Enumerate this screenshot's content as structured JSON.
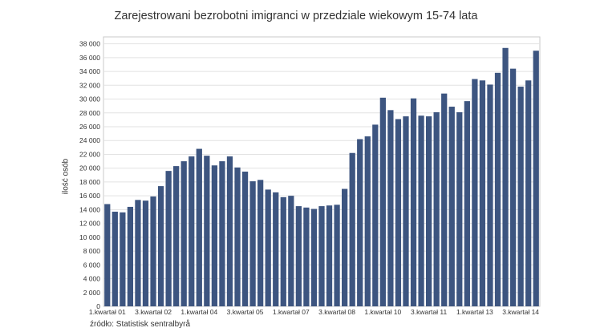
{
  "chart_data": {
    "type": "bar",
    "title": "Zarejestrowani bezrobotni imigranci w przedziale wiekowym 15-74 lata",
    "ylabel": "ilość osób",
    "xlabel": "",
    "ylim": [
      0,
      39000
    ],
    "yticks": [
      "0",
      "2 000",
      "4 000",
      "6 000",
      "8 000",
      "10 000",
      "12 000",
      "14 000",
      "16 000",
      "18 000",
      "20 000",
      "22 000",
      "24 000",
      "26 000",
      "28 000",
      "30 000",
      "32 000",
      "34 000",
      "36 000",
      "38 000"
    ],
    "xtick_labels": [
      "1.kwartał 01",
      "3.kwartał 02",
      "1.kwartał 04",
      "3.kwartał 05",
      "1.kwartał 07",
      "3.kwartał 08",
      "1.kwartał 10",
      "3.kwartał 11",
      "1.kwartał 13",
      "3.kwartał 14"
    ],
    "values": [
      14800,
      13700,
      13600,
      14400,
      15400,
      15300,
      15900,
      17400,
      19600,
      20300,
      21000,
      21700,
      22800,
      21800,
      20400,
      21000,
      21700,
      20100,
      19500,
      18100,
      18300,
      16900,
      16500,
      15800,
      16000,
      14500,
      14300,
      14100,
      14500,
      14600,
      14700,
      17000,
      22200,
      24200,
      24600,
      26300,
      30200,
      28400,
      27100,
      27500,
      30100,
      27600,
      27500,
      28100,
      30800,
      28900,
      28100,
      29700,
      32900,
      32700,
      32100,
      33800,
      37400,
      34400,
      31800,
      32700,
      37000
    ],
    "grid": true,
    "bar_color": "#3d5580",
    "legend": "none"
  },
  "source": "źródło: Statistisk sentralbyrå"
}
